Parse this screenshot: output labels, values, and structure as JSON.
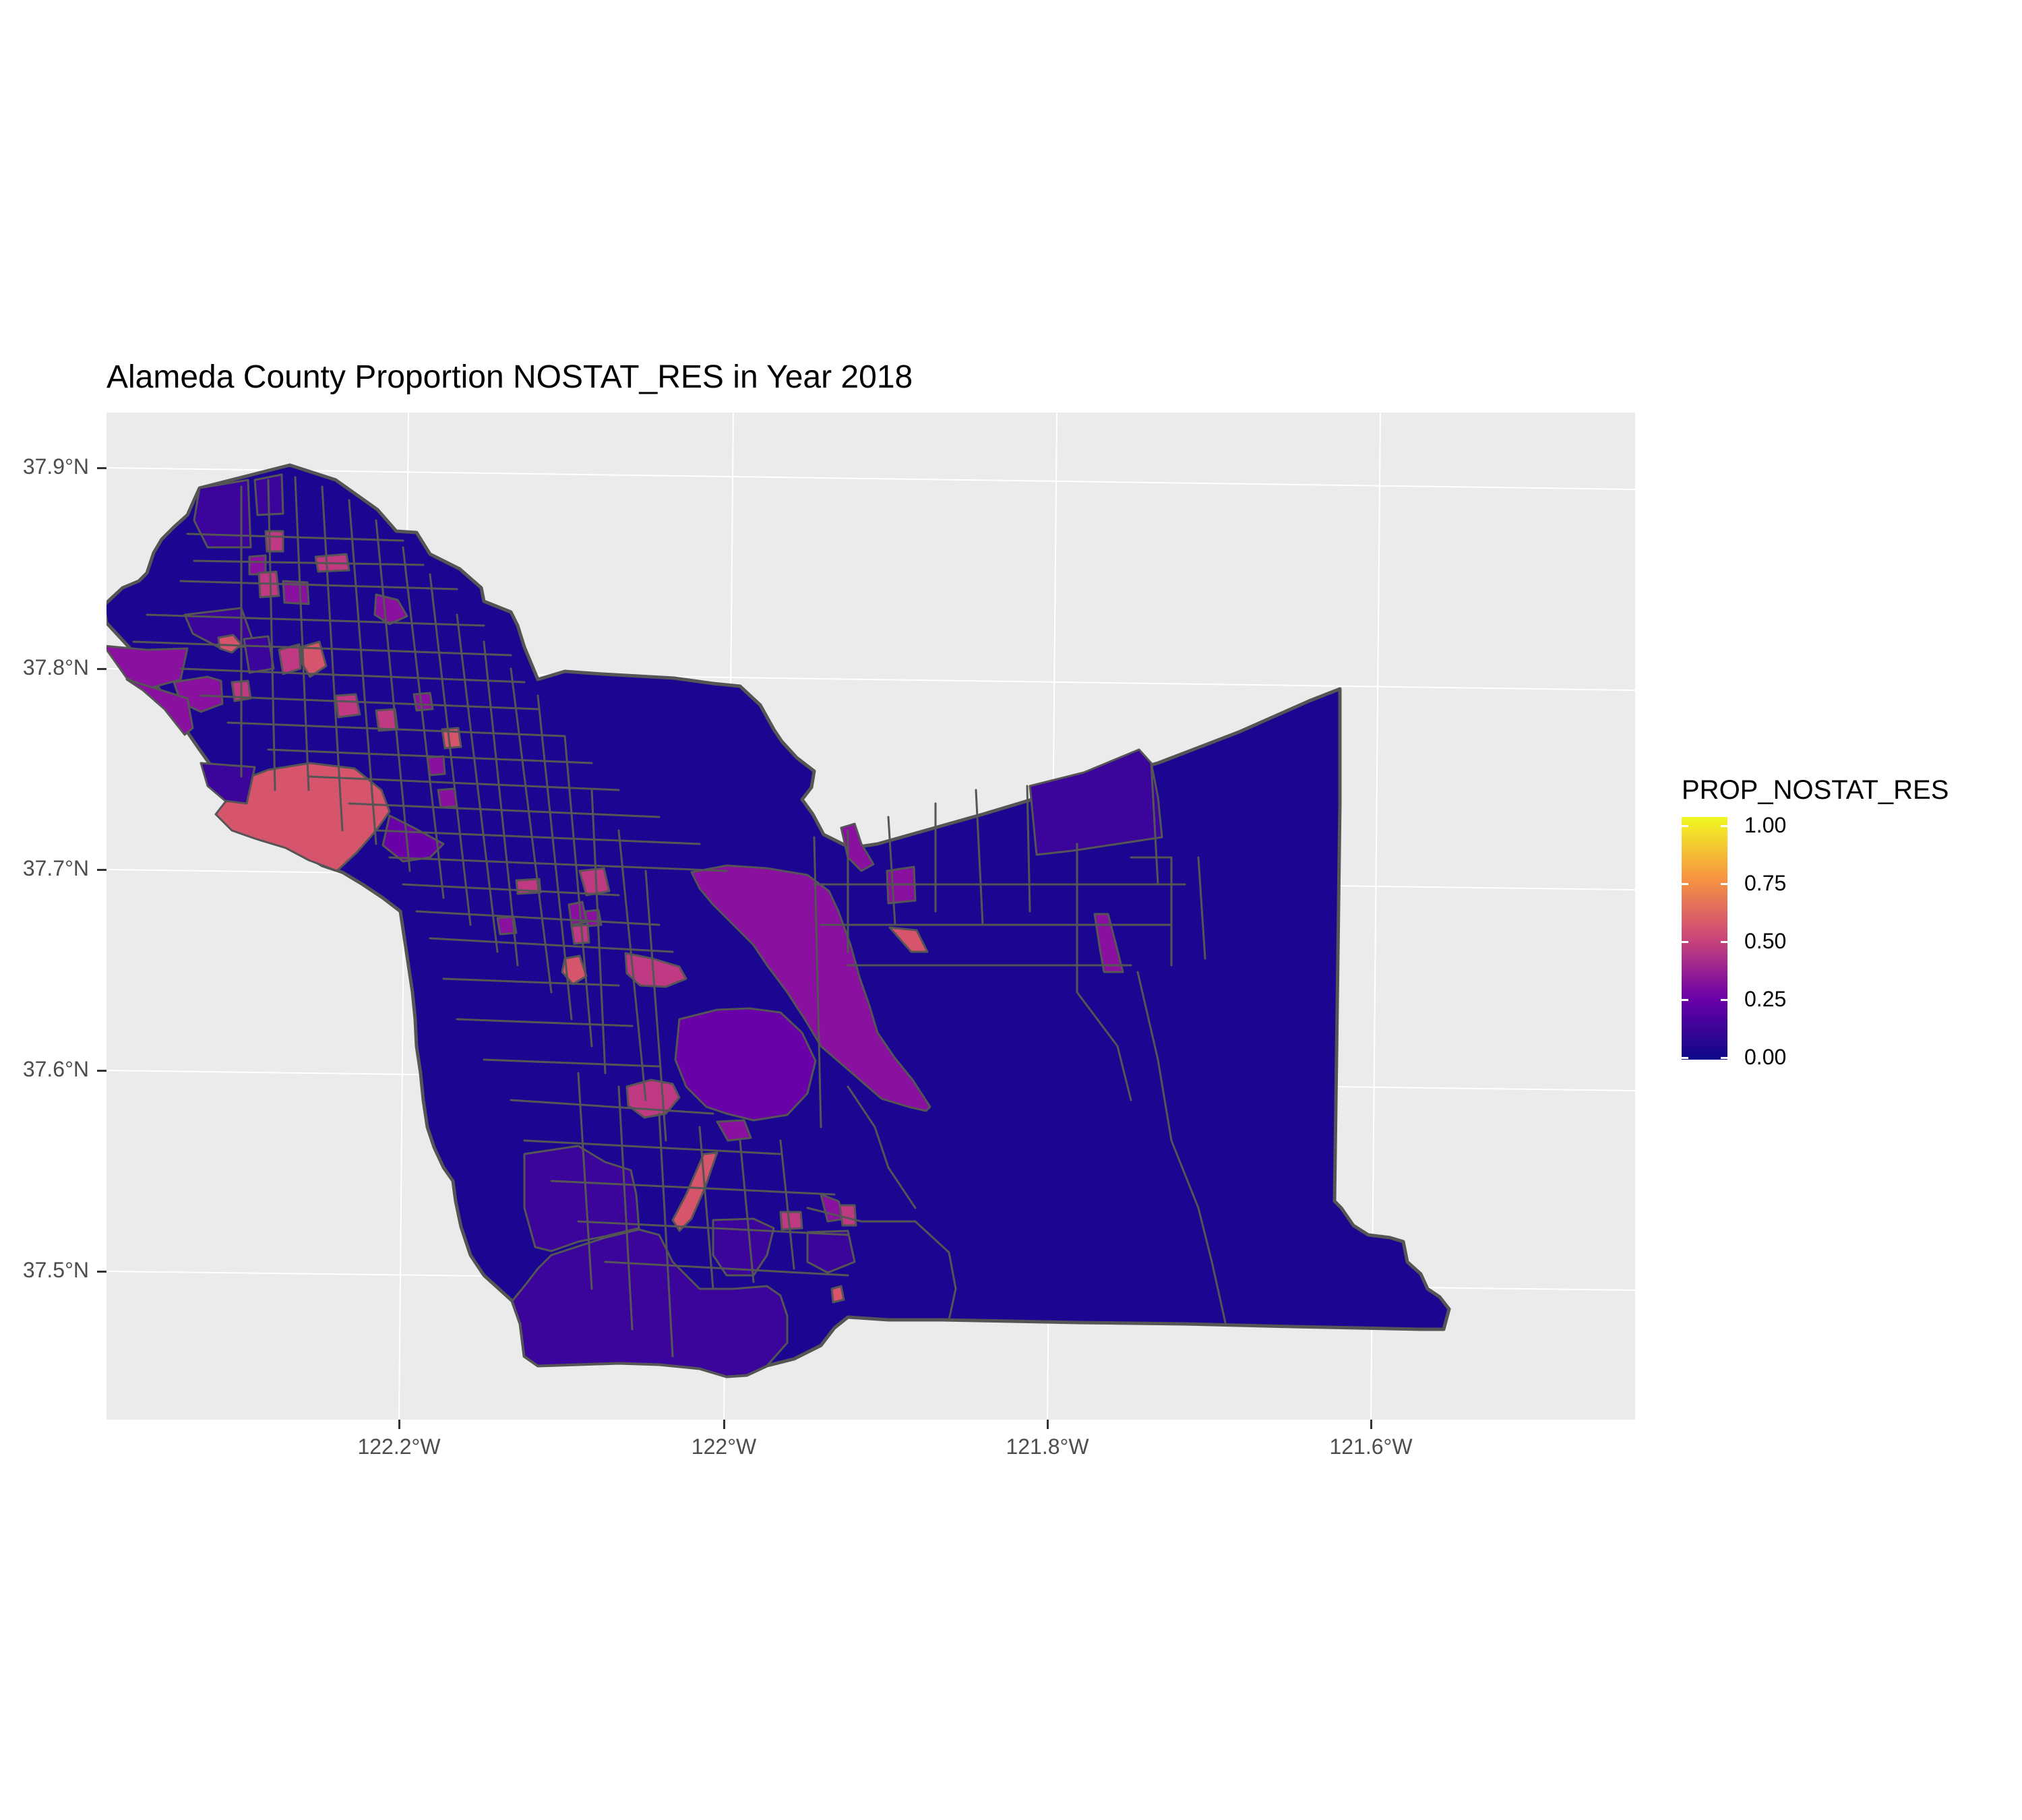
{
  "chart_data": {
    "type": "choropleth map",
    "title": "Alameda County Proportion NOSTAT_RES in Year 2018",
    "y_ticks": [
      "37.9°N",
      "37.8°N",
      "37.7°N",
      "37.6°N",
      "37.5°N"
    ],
    "x_ticks": [
      "122.2°W",
      "122°W",
      "121.8°W",
      "121.6°W"
    ],
    "legend": {
      "title": "PROP_NOSTAT_RES",
      "labels": [
        "1.00",
        "0.75",
        "0.50",
        "0.25",
        "0.00"
      ],
      "values": [
        1.0,
        0.75,
        0.5,
        0.25,
        0.0
      ],
      "palette": [
        "#0d0887",
        "#6a00a8",
        "#cb4679",
        "#f89540",
        "#f0f921"
      ]
    },
    "colors": {
      "panel_background": "#ebebeb",
      "grid": "#ffffff",
      "boundary": "#555555",
      "value_0_00": "#0d0887",
      "value_0_05": "#1a0690",
      "value_0_15": "#3b049a",
      "value_0_30": "#8a10a0",
      "value_0_45": "#c03a83",
      "value_0_55": "#d6556d"
    }
  }
}
